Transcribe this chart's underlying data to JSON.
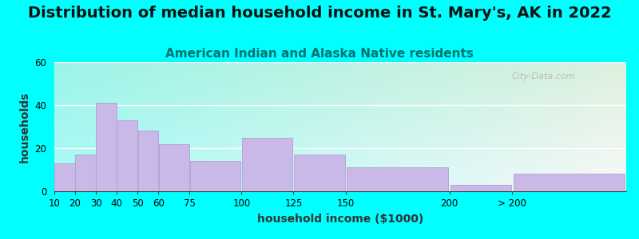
{
  "title": "Distribution of median household income in St. Mary's, AK in 2022",
  "subtitle": "American Indian and Alaska Native residents",
  "xlabel": "household income ($1000)",
  "ylabel": "households",
  "watermark": "City-Data.com",
  "bar_lefts": [
    10,
    20,
    30,
    40,
    50,
    60,
    75,
    100,
    125,
    150,
    200,
    230
  ],
  "bar_widths": [
    10,
    10,
    10,
    10,
    10,
    15,
    25,
    25,
    25,
    50,
    30,
    55
  ],
  "bar_values": [
    13,
    17,
    41,
    33,
    28,
    22,
    14,
    25,
    17,
    11,
    3,
    8
  ],
  "bar_color": "#c9b8e8",
  "bar_edgecolor": "#b0a0d0",
  "xtick_positions": [
    10,
    20,
    30,
    40,
    50,
    60,
    75,
    100,
    125,
    150,
    200,
    230
  ],
  "xtick_labels": [
    "10",
    "20",
    "30",
    "40",
    "50",
    "60",
    "75",
    "100",
    "125",
    "150",
    "200",
    "> 200"
  ],
  "xlim": [
    10,
    285
  ],
  "ylim": [
    0,
    60
  ],
  "yticks": [
    0,
    20,
    40,
    60
  ],
  "bg_top_color": "#ddf0dd",
  "bg_bottom_color": "#f8f8f8",
  "outer_background": "#00ffff",
  "title_fontsize": 14,
  "subtitle_fontsize": 11,
  "subtitle_color": "#007070",
  "axis_label_fontsize": 10
}
